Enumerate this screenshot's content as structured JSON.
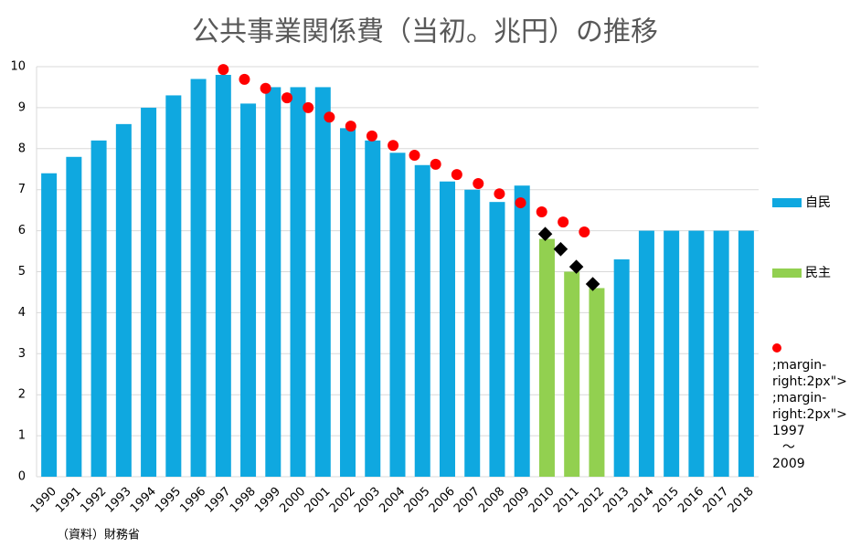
{
  "chart_data": {
    "type": "bar",
    "title": "公共事業関係費（当初。兆円）の推移",
    "note": "（資料）財務省",
    "categories": [
      "1990",
      "1991",
      "1992",
      "1993",
      "1994",
      "1995",
      "1996",
      "1997",
      "1998",
      "1999",
      "2000",
      "2001",
      "2002",
      "2003",
      "2004",
      "2005",
      "2006",
      "2007",
      "2008",
      "2009",
      "2010",
      "2011",
      "2012",
      "2013",
      "2014",
      "2015",
      "2016",
      "2017",
      "2018"
    ],
    "series": [
      {
        "name": "自民",
        "color": "#0fa8e0",
        "values": [
          7.4,
          7.8,
          8.2,
          8.6,
          9.0,
          9.3,
          9.7,
          9.8,
          9.1,
          9.5,
          9.5,
          9.5,
          8.5,
          8.2,
          7.9,
          7.6,
          7.2,
          7.0,
          6.7,
          7.1,
          null,
          null,
          null,
          5.3,
          6,
          6,
          6,
          6,
          6
        ]
      },
      {
        "name": "民主",
        "color": "#92d050",
        "values": [
          null,
          null,
          null,
          null,
          null,
          null,
          null,
          null,
          null,
          null,
          null,
          null,
          null,
          null,
          null,
          null,
          null,
          null,
          null,
          null,
          5.8,
          5.0,
          4.6,
          null,
          null,
          null,
          null,
          null,
          null
        ]
      }
    ],
    "lines": [
      {
        "name": "1997\n～\n2009",
        "color": "#ff0000",
        "marker": "circle",
        "x": [
          1997.0,
          1997.85,
          1998.7,
          1999.56,
          2000.41,
          2001.26,
          2002.12,
          2002.97,
          2003.82,
          2004.68,
          2005.53,
          2006.38,
          2007.24,
          2008.09,
          2008.94,
          2009.79,
          2010.65,
          2011.5
        ],
        "values": [
          9.93,
          9.69,
          9.47,
          9.24,
          9.0,
          8.77,
          8.55,
          8.31,
          8.08,
          7.84,
          7.62,
          7.37,
          7.15,
          6.9,
          6.68,
          6.46,
          6.21,
          5.97
        ]
      },
      {
        "color": "#000000",
        "marker": "diamond",
        "x": [
          2009.93,
          2010.55,
          2011.18,
          2011.84
        ],
        "values": [
          5.92,
          5.55,
          5.12,
          4.7
        ]
      }
    ],
    "ylim": [
      0,
      10
    ],
    "yticks": [
      0,
      1,
      2,
      3,
      4,
      5,
      6,
      7,
      8,
      9,
      10
    ],
    "grid": true
  }
}
